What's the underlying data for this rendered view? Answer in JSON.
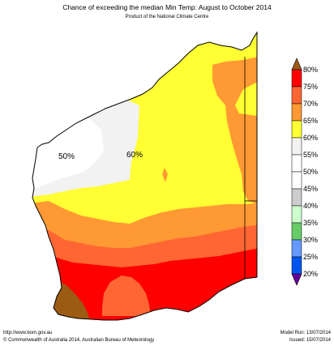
{
  "header": {
    "title": "Chance of exceeding the median Min Temp: August to October 2014",
    "subtitle": "Product of the National Climate Centre"
  },
  "map": {
    "region_labels": [
      "50%",
      "60%"
    ]
  },
  "legend": {
    "labels": [
      "80%",
      "75%",
      "70%",
      "65%",
      "60%",
      "55%",
      "50%",
      "45%",
      "40%",
      "35%",
      "30%",
      "25%",
      "20%"
    ],
    "colors": {
      "above_80": "#9c5b13",
      "p75_80": "#ff0000",
      "p70_75": "#ff6633",
      "p65_70": "#ff9933",
      "p60_65": "#ffff33",
      "p55_60": "#f2f2f2",
      "p50_55": "#ffffff",
      "p45_50": "#ffffff",
      "p40_45": "#cccccc",
      "p35_40": "#ccffcc",
      "p30_35": "#66cc66",
      "p25_30": "#6699ff",
      "p20_25": "#0055ee",
      "below_20": "#660099"
    }
  },
  "footer": {
    "website": "http://www.bom.gov.au",
    "copyright": "©  Commonwealth of Australia 2014, Australian Bureau of Meteorology",
    "model_run": "Model Run: 13/07/2014",
    "issued": "Issued: 15/07/2014"
  }
}
